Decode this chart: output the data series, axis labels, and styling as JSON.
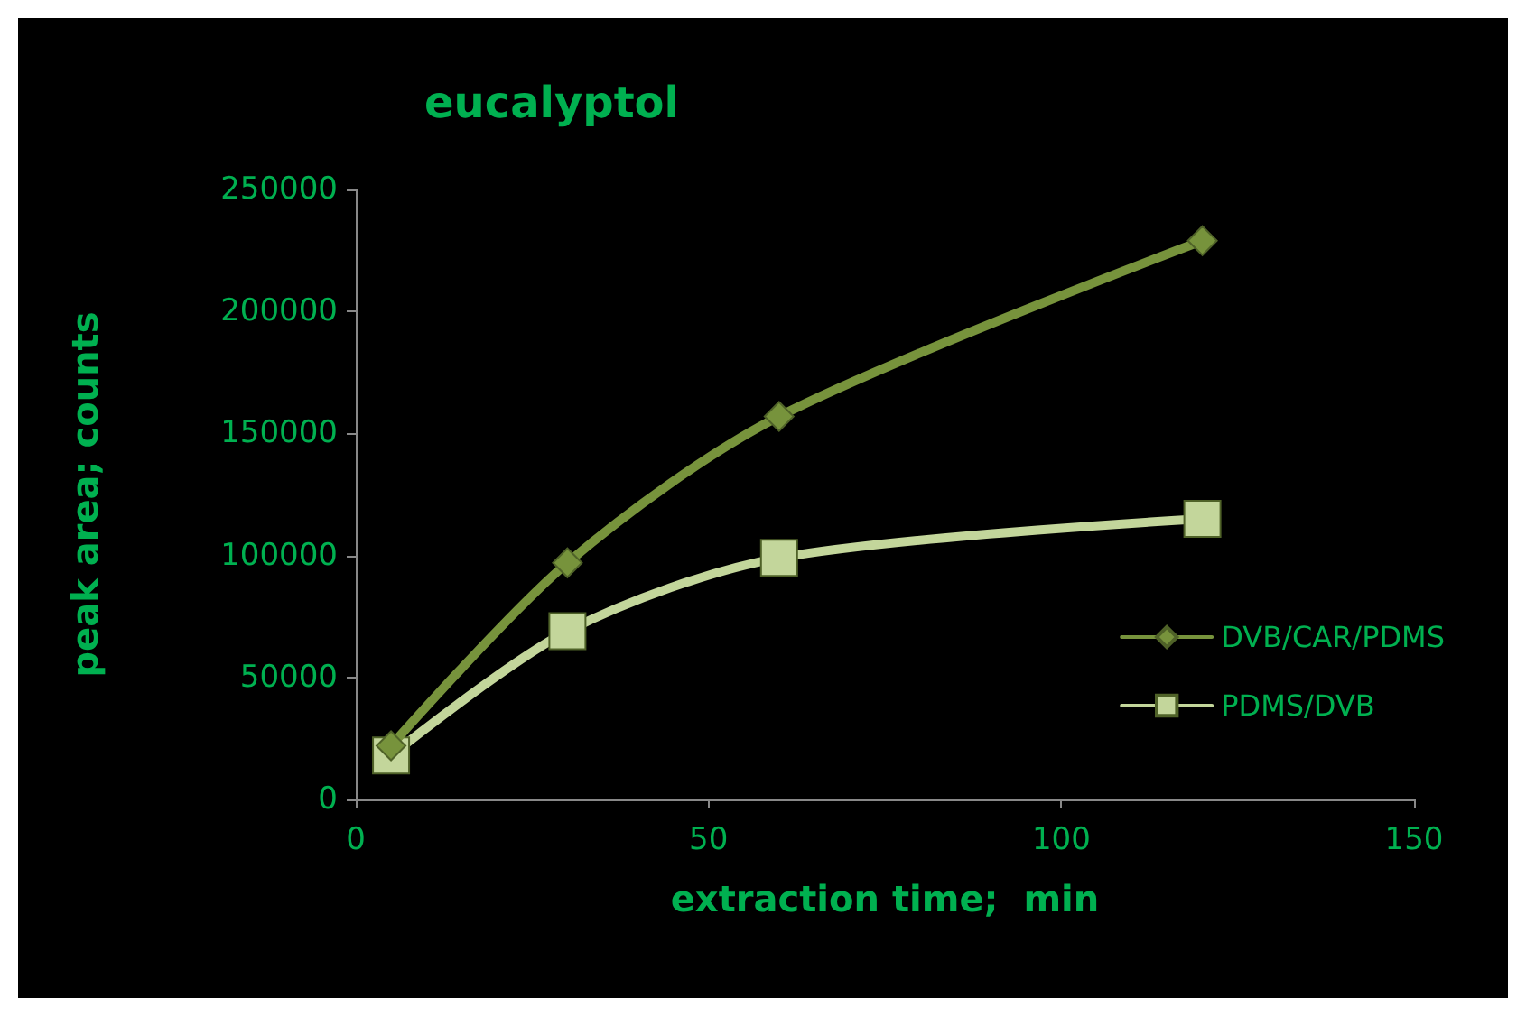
{
  "chart_data": {
    "type": "line",
    "title": "eucalyptol",
    "xlabel": "extraction time;  min",
    "ylabel": "peak area; counts",
    "x": [
      5,
      30,
      60,
      120
    ],
    "series": [
      {
        "name": "DVB/CAR/PDMS",
        "color": "#77933c",
        "marker": "diamond",
        "values": [
          22000,
          97000,
          157000,
          229000
        ]
      },
      {
        "name": "PDMS/DVB",
        "color": "#c3d69b",
        "marker": "square",
        "values": [
          18000,
          69000,
          99000,
          115000
        ]
      }
    ],
    "xlim": [
      0,
      150
    ],
    "xticks": [
      0,
      50,
      100,
      150
    ],
    "ylim": [
      0,
      250000
    ],
    "yticks": [
      0,
      50000,
      100000,
      150000,
      200000,
      250000
    ],
    "grid": false,
    "legend": "right",
    "line_style": "solid"
  }
}
